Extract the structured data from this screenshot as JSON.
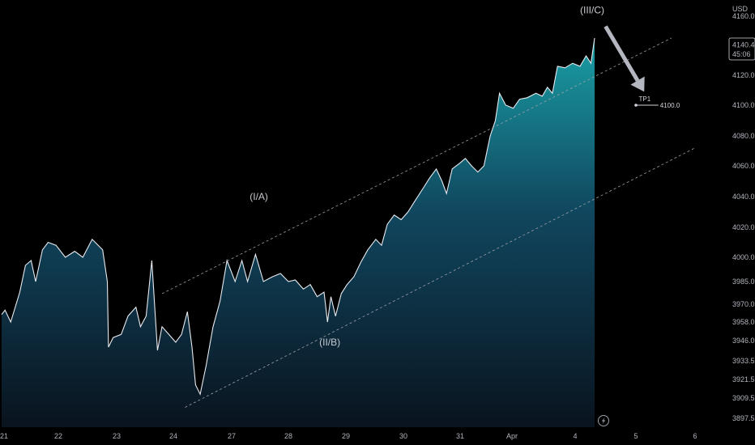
{
  "chart_data": {
    "type": "area",
    "currency_label": "USD",
    "y_ticks": [
      "3897.5",
      "3909.5",
      "3921.5",
      "3933.5",
      "3946.0",
      "3958.0",
      "3970.0",
      "3985.0",
      "4000.0",
      "4020.0",
      "4040.0",
      "4060.0",
      "4080.0",
      "4100.0",
      "4120.0",
      "4140.0",
      "4160.0"
    ],
    "x_ticks": [
      "21",
      "22",
      "23",
      "24",
      "27",
      "28",
      "29",
      "30",
      "31",
      "Apr",
      "4",
      "5",
      "6"
    ],
    "ylim": [
      3890,
      4165
    ],
    "price_label": {
      "price": "4140.4",
      "countdown": "45:06"
    },
    "price_points": [
      {
        "day": 0.0,
        "price": 3963
      },
      {
        "day": 0.06,
        "price": 3966
      },
      {
        "day": 0.16,
        "price": 3958
      },
      {
        "day": 0.24,
        "price": 3968
      },
      {
        "day": 0.32,
        "price": 3978
      },
      {
        "day": 0.42,
        "price": 3995
      },
      {
        "day": 0.52,
        "price": 3998
      },
      {
        "day": 0.6,
        "price": 3985
      },
      {
        "day": 0.72,
        "price": 4005
      },
      {
        "day": 0.82,
        "price": 4010
      },
      {
        "day": 0.96,
        "price": 4008
      },
      {
        "day": 1.12,
        "price": 4000
      },
      {
        "day": 1.28,
        "price": 4004
      },
      {
        "day": 1.42,
        "price": 4000
      },
      {
        "day": 1.58,
        "price": 4012
      },
      {
        "day": 1.76,
        "price": 4005
      },
      {
        "day": 1.84,
        "price": 3985
      },
      {
        "day": 1.86,
        "price": 3942
      },
      {
        "day": 1.94,
        "price": 3948
      },
      {
        "day": 2.08,
        "price": 3950
      },
      {
        "day": 2.2,
        "price": 3962
      },
      {
        "day": 2.34,
        "price": 3968
      },
      {
        "day": 2.42,
        "price": 3955
      },
      {
        "day": 2.52,
        "price": 3962
      },
      {
        "day": 2.62,
        "price": 3998
      },
      {
        "day": 2.66,
        "price": 3975
      },
      {
        "day": 2.72,
        "price": 3940
      },
      {
        "day": 2.8,
        "price": 3955
      },
      {
        "day": 2.92,
        "price": 3950
      },
      {
        "day": 3.04,
        "price": 3945
      },
      {
        "day": 3.14,
        "price": 3950
      },
      {
        "day": 3.24,
        "price": 3965
      },
      {
        "day": 3.32,
        "price": 3942
      },
      {
        "day": 3.38,
        "price": 3918
      },
      {
        "day": 3.46,
        "price": 3912
      },
      {
        "day": 3.56,
        "price": 3930
      },
      {
        "day": 3.68,
        "price": 3955
      },
      {
        "day": 3.8,
        "price": 3972
      },
      {
        "day": 3.92,
        "price": 3998
      },
      {
        "day": 4.06,
        "price": 3985
      },
      {
        "day": 4.18,
        "price": 3998
      },
      {
        "day": 4.28,
        "price": 3985
      },
      {
        "day": 4.42,
        "price": 4002
      },
      {
        "day": 4.56,
        "price": 3985
      },
      {
        "day": 4.72,
        "price": 3988
      },
      {
        "day": 4.86,
        "price": 3990
      },
      {
        "day": 5.0,
        "price": 3985
      },
      {
        "day": 5.12,
        "price": 3986
      },
      {
        "day": 5.26,
        "price": 3980
      },
      {
        "day": 5.38,
        "price": 3983
      },
      {
        "day": 5.5,
        "price": 3975
      },
      {
        "day": 5.62,
        "price": 3978
      },
      {
        "day": 5.68,
        "price": 3958
      },
      {
        "day": 5.74,
        "price": 3975
      },
      {
        "day": 5.82,
        "price": 3962
      },
      {
        "day": 5.92,
        "price": 3977
      },
      {
        "day": 6.02,
        "price": 3983
      },
      {
        "day": 6.14,
        "price": 3988
      },
      {
        "day": 6.26,
        "price": 3997
      },
      {
        "day": 6.38,
        "price": 4005
      },
      {
        "day": 6.52,
        "price": 4012
      },
      {
        "day": 6.62,
        "price": 4008
      },
      {
        "day": 6.72,
        "price": 4022
      },
      {
        "day": 6.84,
        "price": 4028
      },
      {
        "day": 6.96,
        "price": 4025
      },
      {
        "day": 7.08,
        "price": 4030
      },
      {
        "day": 7.2,
        "price": 4037
      },
      {
        "day": 7.34,
        "price": 4045
      },
      {
        "day": 7.46,
        "price": 4052
      },
      {
        "day": 7.58,
        "price": 4058
      },
      {
        "day": 7.68,
        "price": 4050
      },
      {
        "day": 7.76,
        "price": 4042
      },
      {
        "day": 7.86,
        "price": 4058
      },
      {
        "day": 8.0,
        "price": 4062
      },
      {
        "day": 8.1,
        "price": 4065
      },
      {
        "day": 8.22,
        "price": 4060
      },
      {
        "day": 8.34,
        "price": 4056
      },
      {
        "day": 8.46,
        "price": 4060
      },
      {
        "day": 8.58,
        "price": 4080
      },
      {
        "day": 8.68,
        "price": 4090
      },
      {
        "day": 8.76,
        "price": 4108
      },
      {
        "day": 8.88,
        "price": 4100
      },
      {
        "day": 9.02,
        "price": 4098
      },
      {
        "day": 9.12,
        "price": 4104
      },
      {
        "day": 9.24,
        "price": 4105
      },
      {
        "day": 9.38,
        "price": 4108
      },
      {
        "day": 9.48,
        "price": 4106
      },
      {
        "day": 9.56,
        "price": 4112
      },
      {
        "day": 9.64,
        "price": 4108
      },
      {
        "day": 9.72,
        "price": 4126
      },
      {
        "day": 9.84,
        "price": 4125
      },
      {
        "day": 9.96,
        "price": 4128
      },
      {
        "day": 10.08,
        "price": 4126
      },
      {
        "day": 10.18,
        "price": 4133
      },
      {
        "day": 10.26,
        "price": 4128
      },
      {
        "day": 10.32,
        "price": 4145
      }
    ],
    "channel_upper": [
      {
        "day": 2.8,
        "price": 3977
      },
      {
        "day": 11.6,
        "price": 4145
      }
    ],
    "channel_lower": [
      {
        "day": 3.2,
        "price": 3904
      },
      {
        "day": 12.0,
        "price": 4072
      }
    ],
    "wave_labels": [
      {
        "text": "(I/A)",
        "day": 4.48,
        "price": 4038
      },
      {
        "text": "(II/B)",
        "day": 5.72,
        "price": 3943
      },
      {
        "text": "(III/C)",
        "day": 10.28,
        "price": 4162
      }
    ],
    "target": {
      "label": "TP1",
      "value": "4100.0",
      "day_start": 11.0,
      "day_end": 11.38,
      "price": 4100
    },
    "arrow": {
      "from": {
        "day": 10.5,
        "price": 4153
      },
      "to": {
        "day": 11.14,
        "price": 4109
      }
    }
  }
}
